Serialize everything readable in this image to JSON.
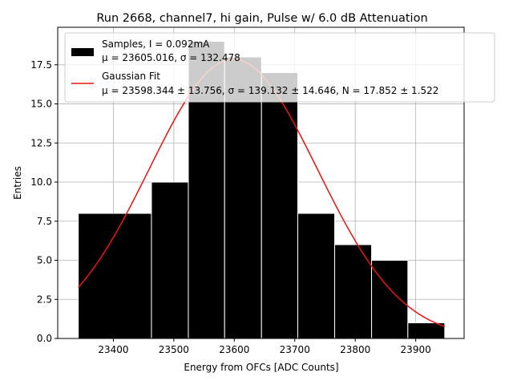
{
  "chart_data": {
    "type": "bar",
    "title": "Run 2668, channel7, hi gain, Pulse w/ 6.0 dB Attenuation",
    "xlabel": "Energy from OFCs [ADC Counts]",
    "ylabel": "Entries",
    "xlim": [
      23308,
      23980
    ],
    "ylim": [
      0,
      19.9
    ],
    "grid": true,
    "x_ticks": [
      23400,
      23500,
      23600,
      23700,
      23800,
      23900
    ],
    "y_ticks": [
      0.0,
      2.5,
      5.0,
      7.5,
      10.0,
      12.5,
      15.0,
      17.5
    ],
    "y_tick_labels": [
      "0.0",
      "2.5",
      "5.0",
      "7.5",
      "10.0",
      "12.5",
      "15.0",
      "17.5"
    ],
    "histogram": {
      "name": "Samples, I = 0.092mA",
      "stats_label": "μ = 23605.016, σ = 132.478",
      "color": "#000000",
      "bins": [
        {
          "x0": 23342,
          "x1": 23463,
          "count": 8
        },
        {
          "x0": 23463,
          "x1": 23524,
          "count": 10
        },
        {
          "x0": 23524,
          "x1": 23584,
          "count": 19
        },
        {
          "x0": 23584,
          "x1": 23645,
          "count": 18
        },
        {
          "x0": 23645,
          "x1": 23705,
          "count": 17
        },
        {
          "x0": 23705,
          "x1": 23766,
          "count": 8
        },
        {
          "x0": 23766,
          "x1": 23827,
          "count": 6
        },
        {
          "x0": 23827,
          "x1": 23887,
          "count": 5
        },
        {
          "x0": 23887,
          "x1": 23948,
          "count": 1
        }
      ]
    },
    "fit": {
      "name": "Gaussian Fit",
      "stats_label": "μ = 23598.344 ± 13.756, σ = 139.132 ± 14.646, N = 17.852 ± 1.522",
      "color": "#ee1111",
      "mu": 23598.344,
      "sigma": 139.132,
      "N": 17.852,
      "x_range": [
        23342,
        23948
      ]
    },
    "legend_position": "top-right"
  }
}
